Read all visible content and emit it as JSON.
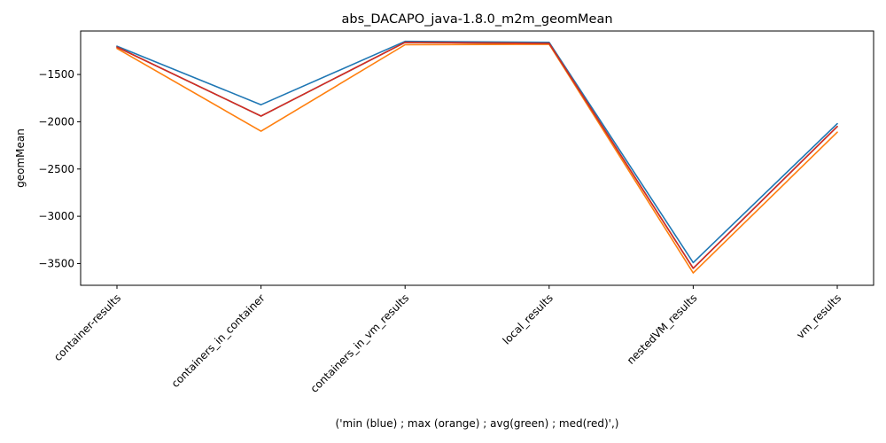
{
  "chart_data": {
    "type": "line",
    "title": "abs_DACAPO_java-1.8.0_m2m_geomMean",
    "xlabel": "('min (blue) ; max (orange) ; avg(green) ; med(red)',)",
    "ylabel": "geomMean",
    "ylim": [
      -3730,
      -1040
    ],
    "yticks": [
      -1500,
      -2000,
      -2500,
      -3000,
      -3500
    ],
    "grid": false,
    "legend": "none",
    "categories": [
      "container-results",
      "containers_in_container",
      "containers_in_vm_results",
      "local_results",
      "nestedVM_results",
      "vm_results"
    ],
    "series": [
      {
        "color": "#1f77b4",
        "values": [
          -1200,
          -1820,
          -1150,
          -1160,
          -3490,
          -2020
        ]
      },
      {
        "color": "#ff7f0e",
        "values": [
          -1225,
          -2100,
          -1185,
          -1180,
          -3600,
          -2110
        ]
      },
      {
        "color": "#2ca02c",
        "values": [
          -1210,
          -1940,
          -1160,
          -1170,
          -3550,
          -2050
        ]
      },
      {
        "color": "#d62728",
        "values": [
          -1210,
          -1940,
          -1160,
          -1170,
          -3550,
          -2050
        ]
      }
    ]
  }
}
